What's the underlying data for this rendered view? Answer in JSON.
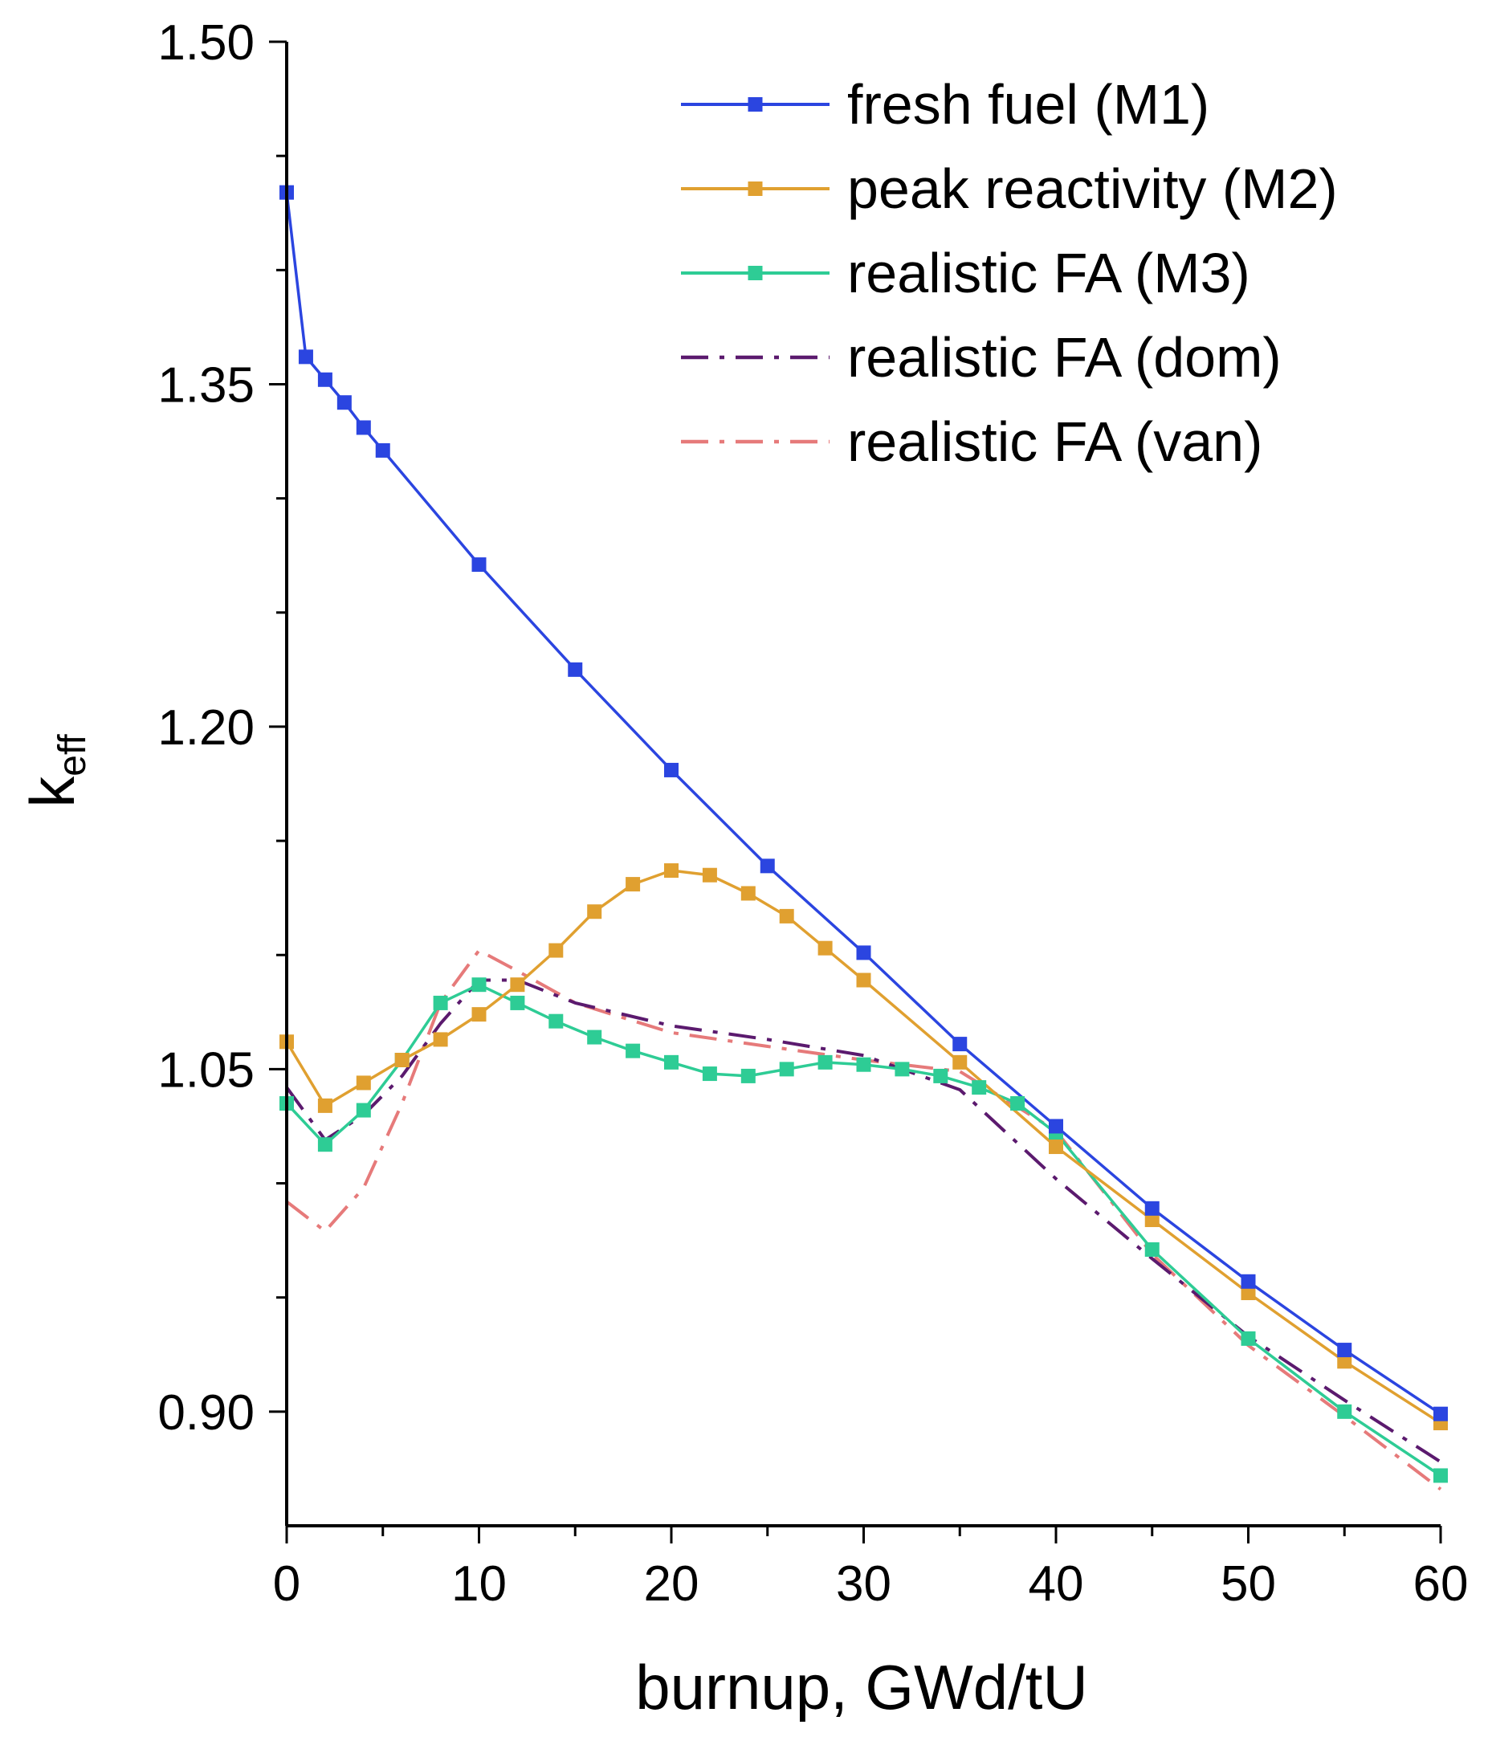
{
  "chart_data": {
    "type": "line",
    "title": "",
    "xlabel": "burnup, GWd/tU",
    "ylabel": "k",
    "ylabel_subscript": "eff",
    "xlim": [
      0,
      60
    ],
    "ylim": [
      0.85,
      1.5
    ],
    "x_ticks": [
      0,
      10,
      20,
      30,
      40,
      50,
      60
    ],
    "x_tick_labels": [
      "0",
      "10",
      "20",
      "30",
      "40",
      "50",
      "60"
    ],
    "y_ticks": [
      0.9,
      1.05,
      1.2,
      1.35,
      1.5
    ],
    "y_tick_labels": [
      "0.90",
      "1.05",
      "1.20",
      "1.35",
      "1.50"
    ],
    "grid": false,
    "legend_position": "top-right",
    "series": [
      {
        "name": "fresh fuel (M1)",
        "color": "#2b45e0",
        "dash": "solid",
        "marker": "square",
        "x": [
          0,
          1,
          2,
          3,
          4,
          5,
          10,
          15,
          20,
          25,
          30,
          35,
          40,
          45,
          50,
          55,
          60
        ],
        "y": [
          1.434,
          1.362,
          1.352,
          1.342,
          1.331,
          1.321,
          1.271,
          1.225,
          1.181,
          1.139,
          1.101,
          1.061,
          1.025,
          0.989,
          0.957,
          0.927,
          0.899
        ]
      },
      {
        "name": "peak reactivity (M2)",
        "color": "#e0a030",
        "dash": "solid",
        "marker": "square",
        "x": [
          0,
          2,
          4,
          6,
          8,
          10,
          12,
          14,
          16,
          18,
          20,
          22,
          24,
          26,
          28,
          30,
          35,
          40,
          45,
          50,
          55,
          60
        ],
        "y": [
          1.062,
          1.034,
          1.044,
          1.054,
          1.063,
          1.074,
          1.087,
          1.102,
          1.119,
          1.131,
          1.137,
          1.135,
          1.127,
          1.117,
          1.103,
          1.089,
          1.053,
          1.016,
          0.984,
          0.952,
          0.922,
          0.895
        ]
      },
      {
        "name": "realistic FA (M3)",
        "color": "#2ecc95",
        "dash": "solid",
        "marker": "square",
        "x": [
          0,
          2,
          4,
          6,
          8,
          10,
          12,
          14,
          16,
          18,
          20,
          22,
          24,
          26,
          28,
          30,
          32,
          34,
          36,
          38,
          40,
          45,
          50,
          55,
          60
        ],
        "y": [
          1.035,
          1.017,
          1.032,
          1.054,
          1.079,
          1.087,
          1.079,
          1.071,
          1.064,
          1.058,
          1.053,
          1.048,
          1.047,
          1.05,
          1.053,
          1.052,
          1.05,
          1.047,
          1.042,
          1.035,
          1.022,
          0.971,
          0.932,
          0.9,
          0.872
        ]
      },
      {
        "name": "realistic FA (dom)",
        "color": "#5b1a6e",
        "dash": "dashdot",
        "marker": "none",
        "x": [
          0,
          2,
          4,
          6,
          8,
          10,
          12,
          15,
          20,
          25,
          30,
          35,
          40,
          45,
          50,
          55,
          60
        ],
        "y": [
          1.042,
          1.019,
          1.03,
          1.047,
          1.07,
          1.089,
          1.089,
          1.079,
          1.069,
          1.063,
          1.056,
          1.041,
          1.002,
          0.967,
          0.933,
          0.905,
          0.878
        ]
      },
      {
        "name": "realistic FA (van)",
        "color": "#e67a7a",
        "dash": "dashdot",
        "marker": "none",
        "x": [
          0,
          2,
          4,
          6,
          8,
          10,
          12,
          15,
          20,
          25,
          30,
          35,
          40,
          45,
          50,
          55,
          60
        ],
        "y": [
          0.992,
          0.979,
          0.998,
          1.035,
          1.079,
          1.102,
          1.093,
          1.079,
          1.066,
          1.06,
          1.054,
          1.049,
          1.023,
          0.969,
          0.929,
          0.898,
          0.866
        ]
      }
    ]
  }
}
